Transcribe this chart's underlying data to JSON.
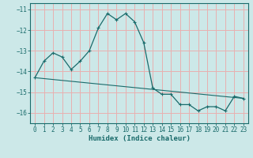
{
  "xlabel": "Humidex (Indice chaleur)",
  "background_color": "#cce8e8",
  "grid_color": "#e8b0b0",
  "line_color": "#1a6b6b",
  "xlim": [
    -0.5,
    23.5
  ],
  "ylim": [
    -16.5,
    -10.7
  ],
  "xticks": [
    0,
    1,
    2,
    3,
    4,
    5,
    6,
    7,
    8,
    9,
    10,
    11,
    12,
    13,
    14,
    15,
    16,
    17,
    18,
    19,
    20,
    21,
    22,
    23
  ],
  "yticks": [
    -16,
    -15,
    -14,
    -13,
    -12,
    -11
  ],
  "curve1_x": [
    0,
    1,
    2,
    3,
    4,
    5,
    6,
    7,
    8,
    9,
    10,
    11,
    12,
    13,
    14,
    15,
    16,
    17,
    18,
    19,
    20,
    21,
    22,
    23
  ],
  "curve1_y": [
    -14.3,
    -13.5,
    -13.1,
    -13.3,
    -13.9,
    -13.5,
    -13.0,
    -11.9,
    -11.2,
    -11.5,
    -11.2,
    -11.6,
    -12.6,
    -14.8,
    -15.1,
    -15.1,
    -15.6,
    -15.6,
    -15.9,
    -15.7,
    -15.7,
    -15.9,
    -15.2,
    -15.3
  ],
  "curve2_x": [
    0,
    23
  ],
  "curve2_y": [
    -14.3,
    -15.3
  ],
  "curve2_mid_x": [
    3
  ],
  "curve2_mid_y": [
    -13.3
  ]
}
